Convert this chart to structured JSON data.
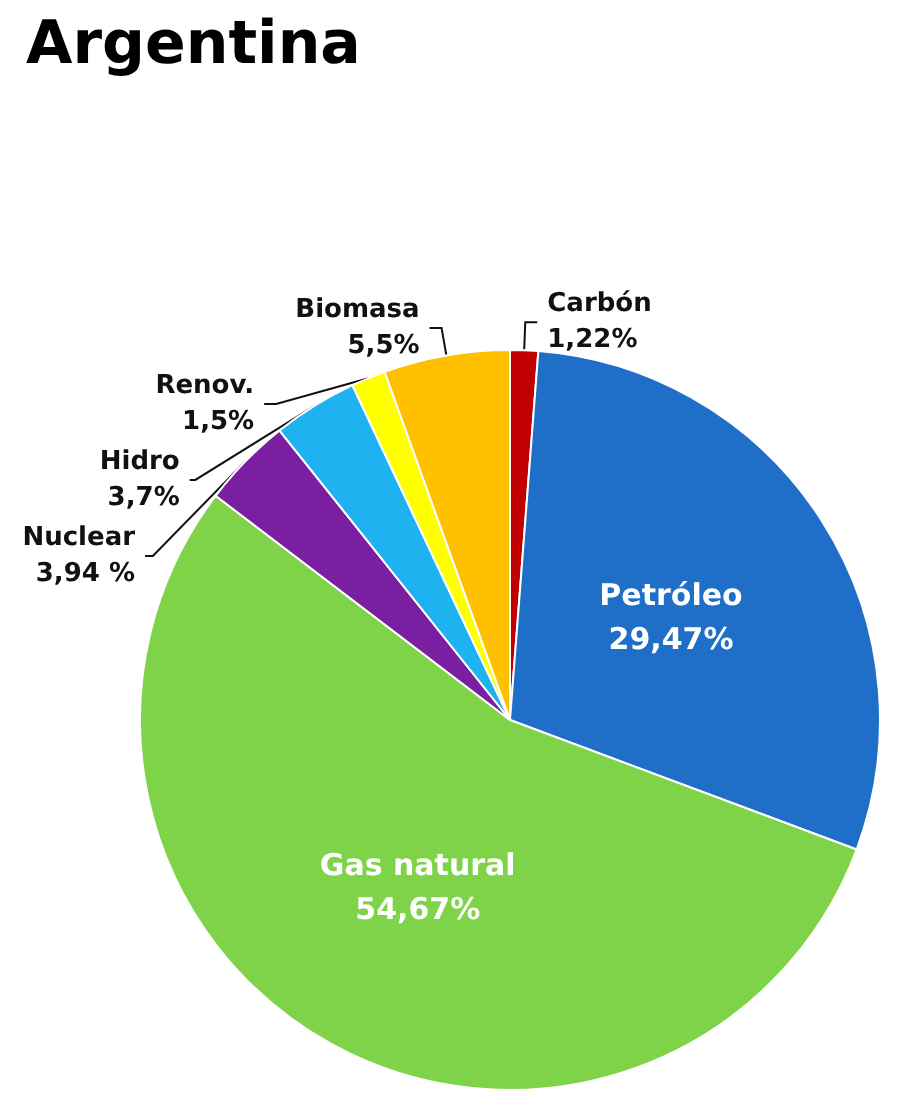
{
  "chart_data": {
    "type": "pie",
    "title": "Argentina",
    "categories": [
      "Carbón",
      "Petróleo",
      "Gas natural",
      "Nuclear",
      "Hidro",
      "Renov.",
      "Biomasa"
    ],
    "values": [
      1.22,
      29.47,
      54.67,
      3.94,
      3.7,
      1.5,
      5.5
    ],
    "value_labels": [
      "1,22%",
      "29,47%",
      "54,67%",
      "3,94 %",
      "3,7%",
      "1,5%",
      "5,5%"
    ],
    "colors": [
      "#c00000",
      "#1f6fc8",
      "#7ed348",
      "#7b1fa2",
      "#1fb2f0",
      "#ffff00",
      "#ffc000"
    ]
  }
}
